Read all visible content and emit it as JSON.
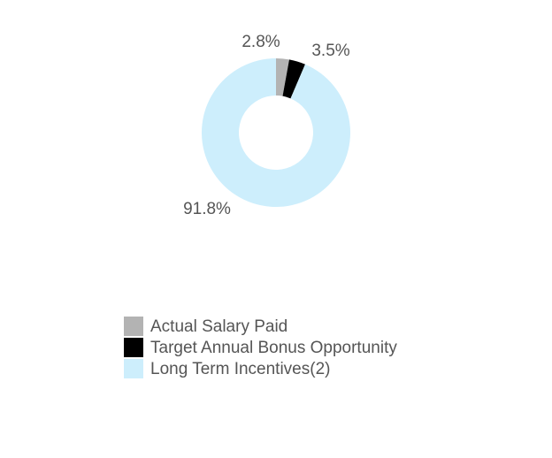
{
  "chart_data": {
    "type": "donut",
    "categories": [
      "Actual Salary Paid",
      "Target Annual Bonus Opportunity",
      "Long Term Incentives(2)"
    ],
    "values": [
      2.8,
      3.5,
      91.8
    ],
    "value_labels": [
      "2.8%",
      "3.5%",
      "91.8%"
    ],
    "colors": [
      "#b3b3b3",
      "#000000",
      "#cdeefc"
    ]
  }
}
